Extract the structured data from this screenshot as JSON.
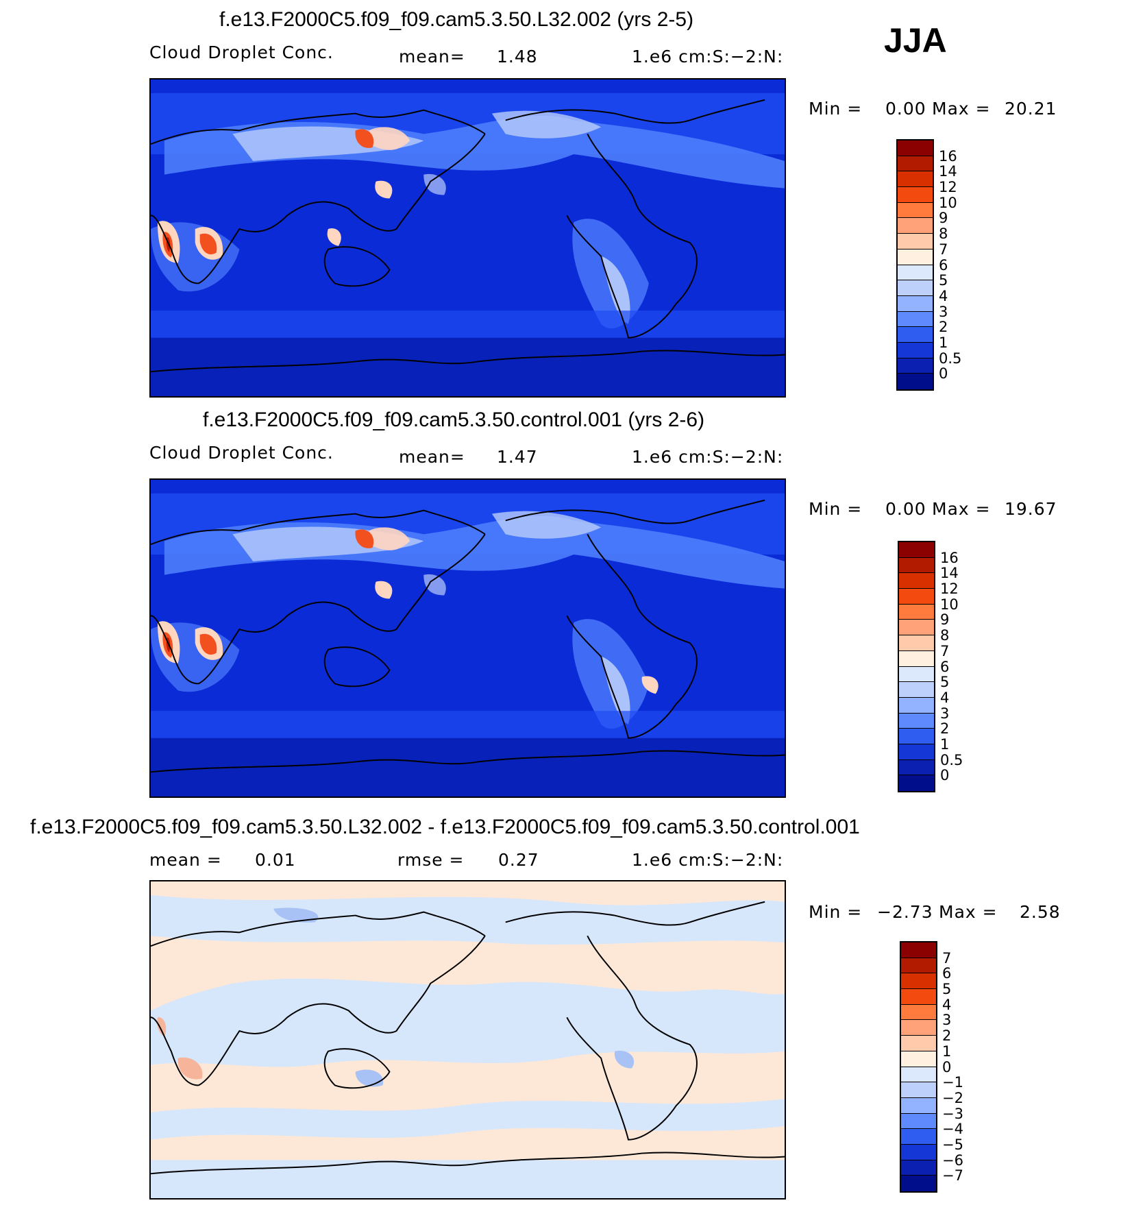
{
  "season": "JJA",
  "panels": [
    {
      "title": "f.e13.F2000C5.f09_f09.cam5.3.50.L32.002 (yrs 2-5)",
      "variable": "Cloud Droplet Conc.",
      "stat1_label": "mean=",
      "stat1_value": "1.48",
      "units": "1.e6 cm:S:-2:N:",
      "min_label": "Min =",
      "min_value": "0.00",
      "max_label": "Max =",
      "max_value": "20.21",
      "colorbar_labels": [
        "16",
        "14",
        "12",
        "10",
        "9",
        "8",
        "7",
        "6",
        "5",
        "4",
        "3",
        "2",
        "1",
        "0.5",
        "0"
      ],
      "colorbar_colors": [
        "#8b0000",
        "#b31b00",
        "#d93000",
        "#f24a0f",
        "#ff7a3d",
        "#ffa27a",
        "#ffc9ab",
        "#fff0e0",
        "#dce8fb",
        "#bcd0fb",
        "#93b2ff",
        "#5f8afd",
        "#2e5df0",
        "#1437d6",
        "#0b1fb0",
        "#000e8c"
      ],
      "map_palette": {
        "ocean": "#0b2bd6",
        "deep": "#0821b8",
        "mid": "#1e4cf2",
        "light": "#4d7dfc",
        "pale": "#b8ccfb",
        "warm": "#ffd6c0",
        "hot": "#f2501f",
        "hottest": "#c01500"
      }
    },
    {
      "title": "f.e13.F2000C5.f09_f09.cam5.3.50.control.001 (yrs 2-6)",
      "variable": "Cloud Droplet Conc.",
      "stat1_label": "mean=",
      "stat1_value": "1.47",
      "units": "1.e6 cm:S:-2:N:",
      "min_label": "Min =",
      "min_value": "0.00",
      "max_label": "Max =",
      "max_value": "19.67",
      "colorbar_labels": [
        "16",
        "14",
        "12",
        "10",
        "9",
        "8",
        "7",
        "6",
        "5",
        "4",
        "3",
        "2",
        "1",
        "0.5",
        "0"
      ],
      "colorbar_colors": [
        "#8b0000",
        "#b31b00",
        "#d93000",
        "#f24a0f",
        "#ff7a3d",
        "#ffa27a",
        "#ffc9ab",
        "#fff0e0",
        "#dce8fb",
        "#bcd0fb",
        "#93b2ff",
        "#5f8afd",
        "#2e5df0",
        "#1437d6",
        "#0b1fb0",
        "#000e8c"
      ],
      "map_palette": {
        "ocean": "#0b2bd6",
        "deep": "#0821b8",
        "mid": "#1e4cf2",
        "light": "#4d7dfc",
        "pale": "#b8ccfb",
        "warm": "#ffd6c0",
        "hot": "#f2501f",
        "hottest": "#c01500"
      }
    },
    {
      "title": "f.e13.F2000C5.f09_f09.cam5.3.50.L32.002 - f.e13.F2000C5.f09_f09.cam5.3.50.control.001",
      "stat0_label": "mean =",
      "stat0_value": "0.01",
      "stat1_label": "rmse =",
      "stat1_value": "0.27",
      "units": "1.e6 cm:S:-2:N:",
      "min_label": "Min =",
      "min_value": "-2.73",
      "max_label": "Max =",
      "max_value": "2.58",
      "colorbar_labels": [
        "7",
        "6",
        "5",
        "4",
        "3",
        "2",
        "1",
        "0",
        "-1",
        "-2",
        "-3",
        "-4",
        "-5",
        "-6",
        "-7"
      ],
      "colorbar_colors": [
        "#8b0000",
        "#b31b00",
        "#d93000",
        "#f24a0f",
        "#ff7a3d",
        "#ffa27a",
        "#ffc9ab",
        "#fff0e0",
        "#dce8fb",
        "#bcd0fb",
        "#93b2ff",
        "#5f8afd",
        "#2e5df0",
        "#1437d6",
        "#0b1fb0",
        "#000e8c"
      ],
      "map_palette": {
        "ocean": "#d6e6fb",
        "land": "#fde8d8",
        "blue": "#a8c2f5",
        "red": "#f6b59a"
      }
    }
  ]
}
